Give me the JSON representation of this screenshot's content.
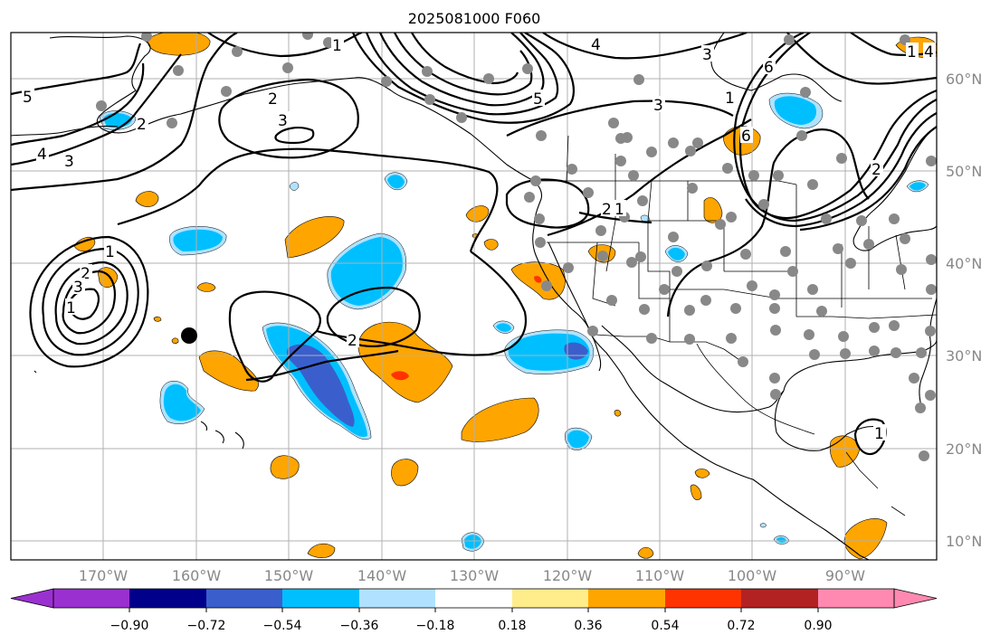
{
  "title": "2025081000 F060",
  "map": {
    "lat_labels": [
      "60°N",
      "50°N",
      "40°N",
      "30°N",
      "20°N",
      "10°N"
    ],
    "lon_labels": [
      "170°W",
      "160°W",
      "150°W",
      "140°W",
      "130°W",
      "120°W",
      "110°W",
      "100°W",
      "90°W"
    ],
    "contour_labels": [
      "5",
      "4",
      "3",
      "2",
      "3",
      "2",
      "2",
      "1",
      "1",
      "2",
      "3",
      "1",
      "2",
      "1",
      "4",
      "3",
      "3",
      "5",
      "6",
      "6",
      "2",
      "1",
      "1",
      "1",
      "4"
    ]
  },
  "colorbar": {
    "tick_labels": [
      "−0.90",
      "−0.72",
      "−0.54",
      "−0.36",
      "−0.18",
      "0.18",
      "0.36",
      "0.54",
      "0.72",
      "0.90"
    ],
    "colors": [
      "#9b30d0",
      "#00008b",
      "#3a5fcd",
      "#00bfff",
      "#b0e2ff",
      "#ffffff",
      "#ffec8b",
      "#ffa500",
      "#ff3300",
      "#b22222",
      "#ff89b0"
    ]
  }
}
